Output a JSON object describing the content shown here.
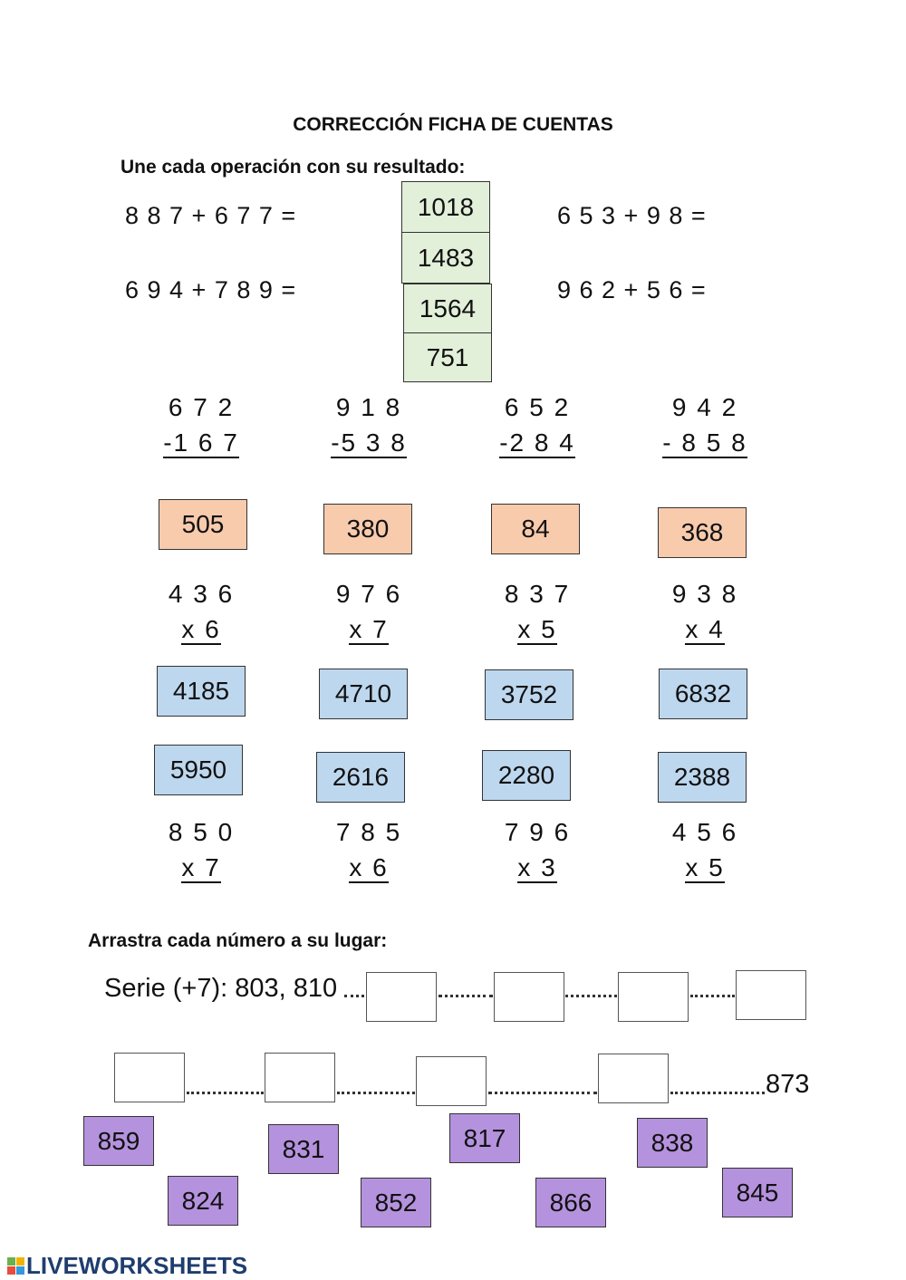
{
  "title": "CORRECCIÓN FICHA DE CUENTAS",
  "section1": {
    "instruction": "Une cada operación con su resultado:",
    "left": [
      "8 8 7 + 6 7 7 =",
      "6 9 4 + 7 8 9 ="
    ],
    "right": [
      "6 5 3 + 9 8 =",
      "9 6 2 + 5 6 ="
    ],
    "results": [
      "1018",
      "1483",
      "1564",
      "751"
    ]
  },
  "subtractions": [
    [
      "6 7 2",
      "-1 6 7"
    ],
    [
      "9 1 8",
      "-5 3 8"
    ],
    [
      "6 5 2",
      "-2 8 4"
    ],
    [
      "9 4 2",
      "- 8 5 8"
    ]
  ],
  "sub_results": [
    "505",
    "380",
    "84",
    "368"
  ],
  "mult_row1": [
    [
      "4 3 6",
      "x   6"
    ],
    [
      "9 7 6",
      "x   7"
    ],
    [
      "8 3 7",
      "x   5"
    ],
    [
      "9 3 8",
      "x   4"
    ]
  ],
  "mult_results_a": [
    "4185",
    "4710",
    "3752",
    "6832"
  ],
  "mult_results_b": [
    "5950",
    "2616",
    "2280",
    "2388"
  ],
  "mult_row2": [
    [
      "8 5 0",
      "x   7"
    ],
    [
      "7 8 5",
      "x   6"
    ],
    [
      "7 9 6",
      "x   3"
    ],
    [
      "4 5 6",
      "x   5"
    ]
  ],
  "section2": {
    "instruction": "Arrastra cada número a su lugar:",
    "series_label": "Serie (+7): 803, 810",
    "end": "873",
    "tiles": [
      "859",
      "831",
      "817",
      "838",
      "824",
      "852",
      "866",
      "845"
    ]
  },
  "logo": {
    "text": "LIVEWORKSHEETS",
    "letters": [
      "L",
      "I",
      "V",
      "E"
    ],
    "colors": [
      "#6ab04c",
      "#f0b400",
      "#e74c3c",
      "#3498db"
    ]
  }
}
